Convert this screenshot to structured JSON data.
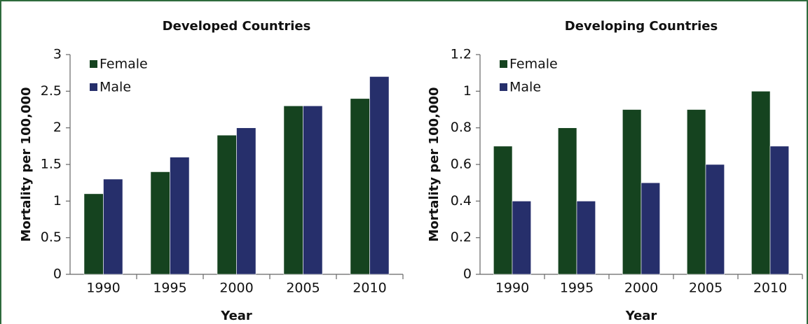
{
  "chart_data": [
    {
      "type": "bar",
      "title": "Developed Countries",
      "xlabel": "Year",
      "ylabel": "Mortality per 100,000",
      "categories": [
        "1990",
        "1995",
        "2000",
        "2005",
        "2010"
      ],
      "series": [
        {
          "name": "Female",
          "color": "#15431f",
          "values": [
            1.1,
            1.4,
            1.9,
            2.3,
            2.4
          ]
        },
        {
          "name": "Male",
          "color": "#262f6b",
          "values": [
            1.3,
            1.6,
            2.0,
            2.3,
            2.7
          ]
        }
      ],
      "ylim": [
        0,
        3
      ],
      "yticks": [
        0,
        0.5,
        1,
        1.5,
        2,
        2.5,
        3
      ],
      "legend": "upper left"
    },
    {
      "type": "bar",
      "title": "Developing Countries",
      "xlabel": "Year",
      "ylabel": "Mortality per 100,000",
      "categories": [
        "1990",
        "1995",
        "2000",
        "2005",
        "2010"
      ],
      "series": [
        {
          "name": "Female",
          "color": "#15431f",
          "values": [
            0.7,
            0.8,
            0.9,
            0.9,
            1.0
          ]
        },
        {
          "name": "Male",
          "color": "#262f6b",
          "values": [
            0.4,
            0.4,
            0.5,
            0.6,
            0.7
          ]
        }
      ],
      "ylim": [
        0,
        1.2
      ],
      "yticks": [
        0,
        0.2,
        0.4,
        0.6,
        0.8,
        1,
        1.2
      ],
      "legend": "upper left"
    }
  ]
}
